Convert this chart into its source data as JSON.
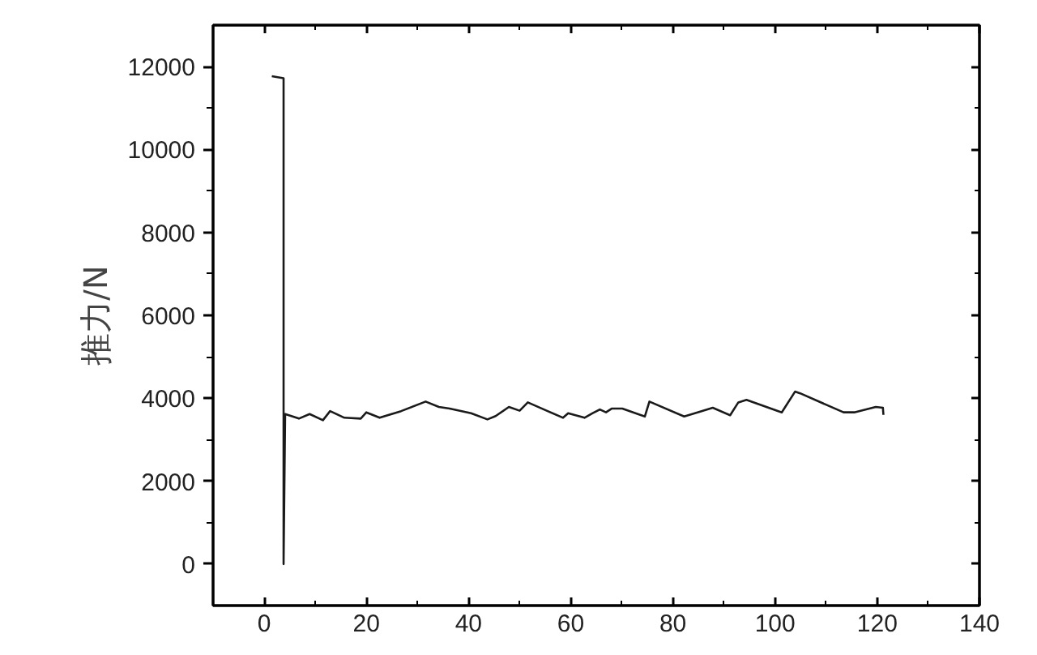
{
  "chart_data": {
    "type": "line",
    "ylabel": "推力/N",
    "color": "#1a1a1a",
    "xlim": [
      -10,
      140
    ],
    "ylim": [
      -1000,
      13000
    ],
    "xticks": [
      0,
      20,
      40,
      60,
      80,
      100,
      120,
      140
    ],
    "yticks": [
      0,
      2000,
      4000,
      6000,
      8000,
      10000,
      12000
    ],
    "grid": false,
    "marker": "none",
    "line_style": "solid",
    "x": [
      1.5,
      3.8,
      3.8,
      4.1,
      6.8,
      8.9,
      11.5,
      12.9,
      15.7,
      18.9,
      20,
      22.6,
      26.8,
      31.6,
      34.2,
      36.3,
      40.5,
      43.7,
      45.3,
      47.9,
      50,
      51.6,
      55.3,
      58.5,
      59.5,
      62.7,
      64.3,
      65.7,
      66.9,
      68,
      70.1,
      74.5,
      75.4,
      82.2,
      87.8,
      91.2,
      92.8,
      94.4,
      101.3,
      103.9,
      104.9,
      113.4,
      115.5,
      119.7,
      121.1,
      121.2
    ],
    "values": [
      11770,
      11720,
      0,
      3620,
      3510,
      3620,
      3470,
      3690,
      3530,
      3510,
      3660,
      3530,
      3690,
      3920,
      3790,
      3750,
      3640,
      3490,
      3570,
      3790,
      3700,
      3900,
      3700,
      3530,
      3640,
      3530,
      3640,
      3730,
      3660,
      3750,
      3750,
      3560,
      3920,
      3560,
      3770,
      3590,
      3900,
      3960,
      3660,
      4160,
      4120,
      3660,
      3660,
      3790,
      3770,
      3600
    ]
  }
}
